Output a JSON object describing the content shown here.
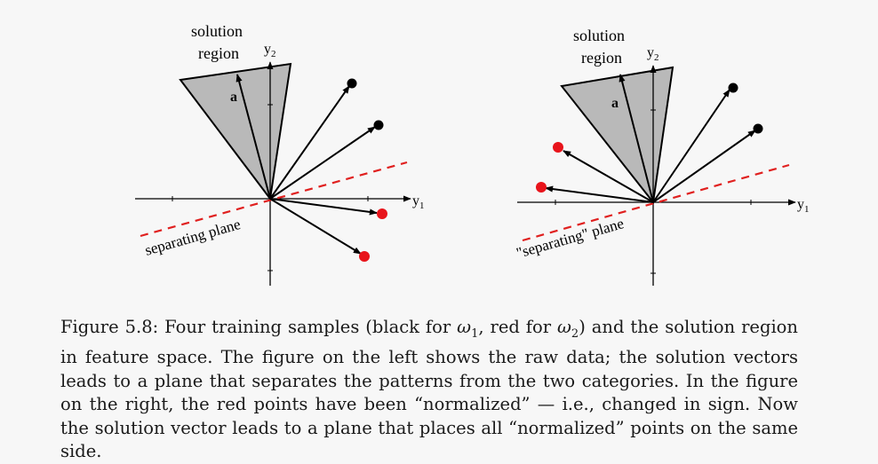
{
  "left_figure": {
    "solution_label_1": "solution",
    "solution_label_2": "region",
    "y2_label": "y",
    "y2_sub": "2",
    "y1_label": "y",
    "y1_sub": "1",
    "a_label": "a",
    "plane_label": "separating plane"
  },
  "right_figure": {
    "solution_label_1": "solution",
    "solution_label_2": "region",
    "y2_label": "y",
    "y2_sub": "2",
    "y1_label": "y",
    "y1_sub": "1",
    "a_label": "a",
    "plane_label": "\"separating\" plane"
  },
  "caption": {
    "prefix": "Figure 5.8: Four training samples (black for ",
    "omega1": "ω",
    "omega1_sub": "1",
    "middle": ", red for ",
    "omega2": "ω",
    "omega2_sub": "2",
    "rest": ") and the solution region in feature space. The figure on the left shows the raw data; the solution vectors leads to a plane that separates the patterns from the two categories. In the figure on the right, the red points have been “normalized” — i.e., changed in sign. Now the solution vector leads to a plane that places all “normalized” points on the same side."
  },
  "colors": {
    "region_fill": "#b9b9b9",
    "red_point": "#e8141b",
    "black_point": "#000000",
    "dashed_plane": "#e0201f"
  }
}
